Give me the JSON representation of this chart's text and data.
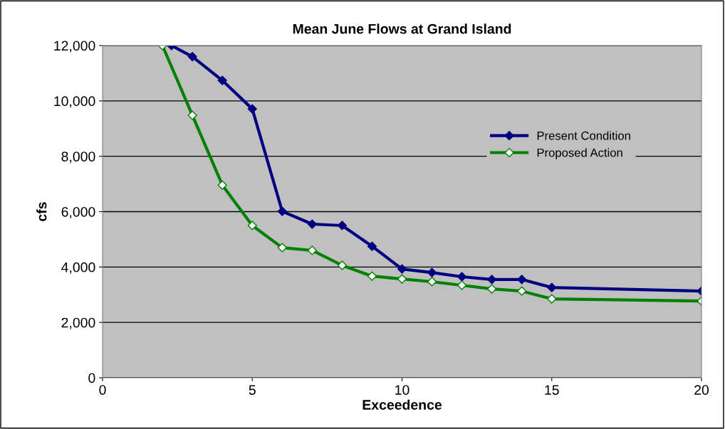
{
  "chart_data": {
    "type": "line",
    "title": "Mean June Flows at Grand Island",
    "xlabel": "Exceedence",
    "ylabel": "cfs",
    "series": [
      {
        "name": "Present Condition",
        "color": "#000080",
        "x": [
          2.3,
          3,
          4,
          5,
          6,
          7,
          8,
          9,
          10,
          11,
          12,
          13,
          14,
          15,
          20
        ],
        "values": [
          12000,
          11600,
          10740,
          9710,
          6010,
          5550,
          5500,
          4750,
          3930,
          3800,
          3650,
          3550,
          3550,
          3260,
          3130
        ]
      },
      {
        "name": "Proposed Action",
        "color": "#008000",
        "x": [
          2,
          3,
          4,
          5,
          6,
          7,
          8,
          9,
          10,
          11,
          12,
          13,
          14,
          15,
          20
        ],
        "values": [
          12000,
          9480,
          6960,
          5500,
          4700,
          4600,
          4060,
          3670,
          3570,
          3470,
          3340,
          3210,
          3130,
          2850,
          2770
        ]
      }
    ],
    "xlim": [
      0,
      20
    ],
    "xticks": [
      0,
      5,
      10,
      15,
      20
    ],
    "ylim": [
      0,
      12000
    ],
    "yticks": [
      {
        "value": 0,
        "label": "0"
      },
      {
        "value": 2000,
        "label": "2,000"
      },
      {
        "value": 4000,
        "label": "4,000"
      },
      {
        "value": 6000,
        "label": "6,000"
      },
      {
        "value": 8000,
        "label": "8,000"
      },
      {
        "value": 10000,
        "label": "10,000"
      },
      {
        "value": 12000,
        "label": "12,000"
      }
    ],
    "grid": "y",
    "legend": "right",
    "marker": "diamond",
    "line_style": "solid"
  }
}
